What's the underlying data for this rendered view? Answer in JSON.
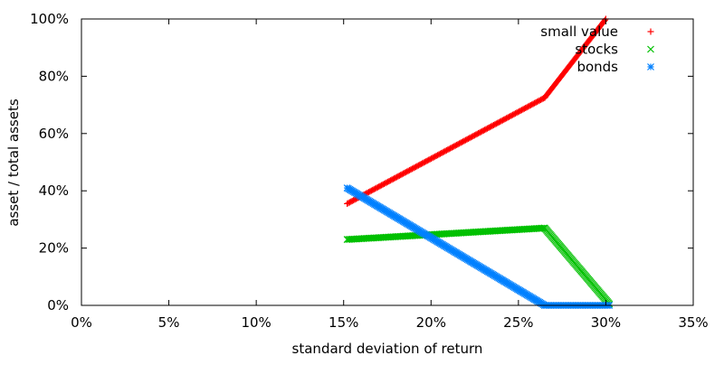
{
  "chart_data": {
    "type": "scatter",
    "xlabel": "standard deviation of return",
    "ylabel": "asset / total assets",
    "xlim": [
      0,
      35
    ],
    "ylim": [
      0,
      100
    ],
    "x_ticks": [
      {
        "value": 0,
        "label": "0%"
      },
      {
        "value": 5,
        "label": "5%"
      },
      {
        "value": 10,
        "label": "10%"
      },
      {
        "value": 15,
        "label": "15%"
      },
      {
        "value": 20,
        "label": "20%"
      },
      {
        "value": 25,
        "label": "25%"
      },
      {
        "value": 30,
        "label": "30%"
      },
      {
        "value": 35,
        "label": "35%"
      }
    ],
    "y_ticks": [
      {
        "value": 0,
        "label": "0%"
      },
      {
        "value": 20,
        "label": "20%"
      },
      {
        "value": 40,
        "label": "40%"
      },
      {
        "value": 60,
        "label": "60%"
      },
      {
        "value": 80,
        "label": "80%"
      },
      {
        "value": 100,
        "label": "100%"
      }
    ],
    "grid": false,
    "legend_position": "top-right",
    "series": [
      {
        "name": "small value",
        "color": "#ff0000",
        "marker": "plus",
        "points": [
          [
            15.2,
            35.5
          ],
          [
            26.5,
            72.5
          ],
          [
            30.0,
            100.0
          ]
        ]
      },
      {
        "name": "stocks",
        "color": "#00c000",
        "marker": "cross",
        "points": [
          [
            15.2,
            23.0
          ],
          [
            26.5,
            27.0
          ],
          [
            30.2,
            0.5
          ]
        ]
      },
      {
        "name": "bonds",
        "color": "#0080ff",
        "marker": "star",
        "points": [
          [
            15.2,
            41.0
          ],
          [
            26.5,
            0.0
          ],
          [
            30.2,
            0.0
          ]
        ]
      }
    ]
  }
}
